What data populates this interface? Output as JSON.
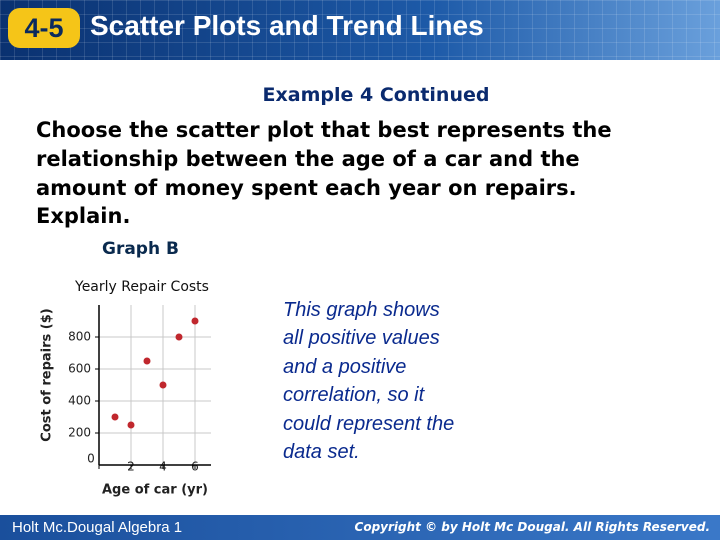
{
  "header": {
    "lesson": "4-5",
    "title": "Scatter Plots and Trend Lines"
  },
  "example": "Example 4 Continued",
  "question": [
    "Choose the scatter plot that best represents the",
    "relationship between the age of a car and the",
    "amount of money spent each year on repairs.",
    "Explain."
  ],
  "graph_label": "Graph B",
  "chart_data": {
    "type": "scatter",
    "title": "Yearly Repair Costs",
    "x_label": "Age of car (yr)",
    "y_label": "Cost of repairs ($)",
    "x": [
      1,
      2,
      3,
      4,
      5,
      6
    ],
    "values": [
      300,
      250,
      650,
      500,
      800,
      900
    ],
    "color": "#c0272d",
    "xlim": [
      0,
      7
    ],
    "ylim": [
      0,
      1000
    ],
    "xticks": [
      0,
      2,
      4,
      6
    ],
    "yticks": [
      200,
      400,
      600,
      800
    ],
    "grid": true
  },
  "explanation": [
    "This graph shows",
    "all positive values",
    "and a positive",
    "correlation, so it",
    "could represent the",
    "data set."
  ],
  "footer": {
    "left": "Holt Mc.Dougal Algebra 1",
    "right": "Copyright © by Holt Mc Dougal. All Rights Reserved."
  }
}
